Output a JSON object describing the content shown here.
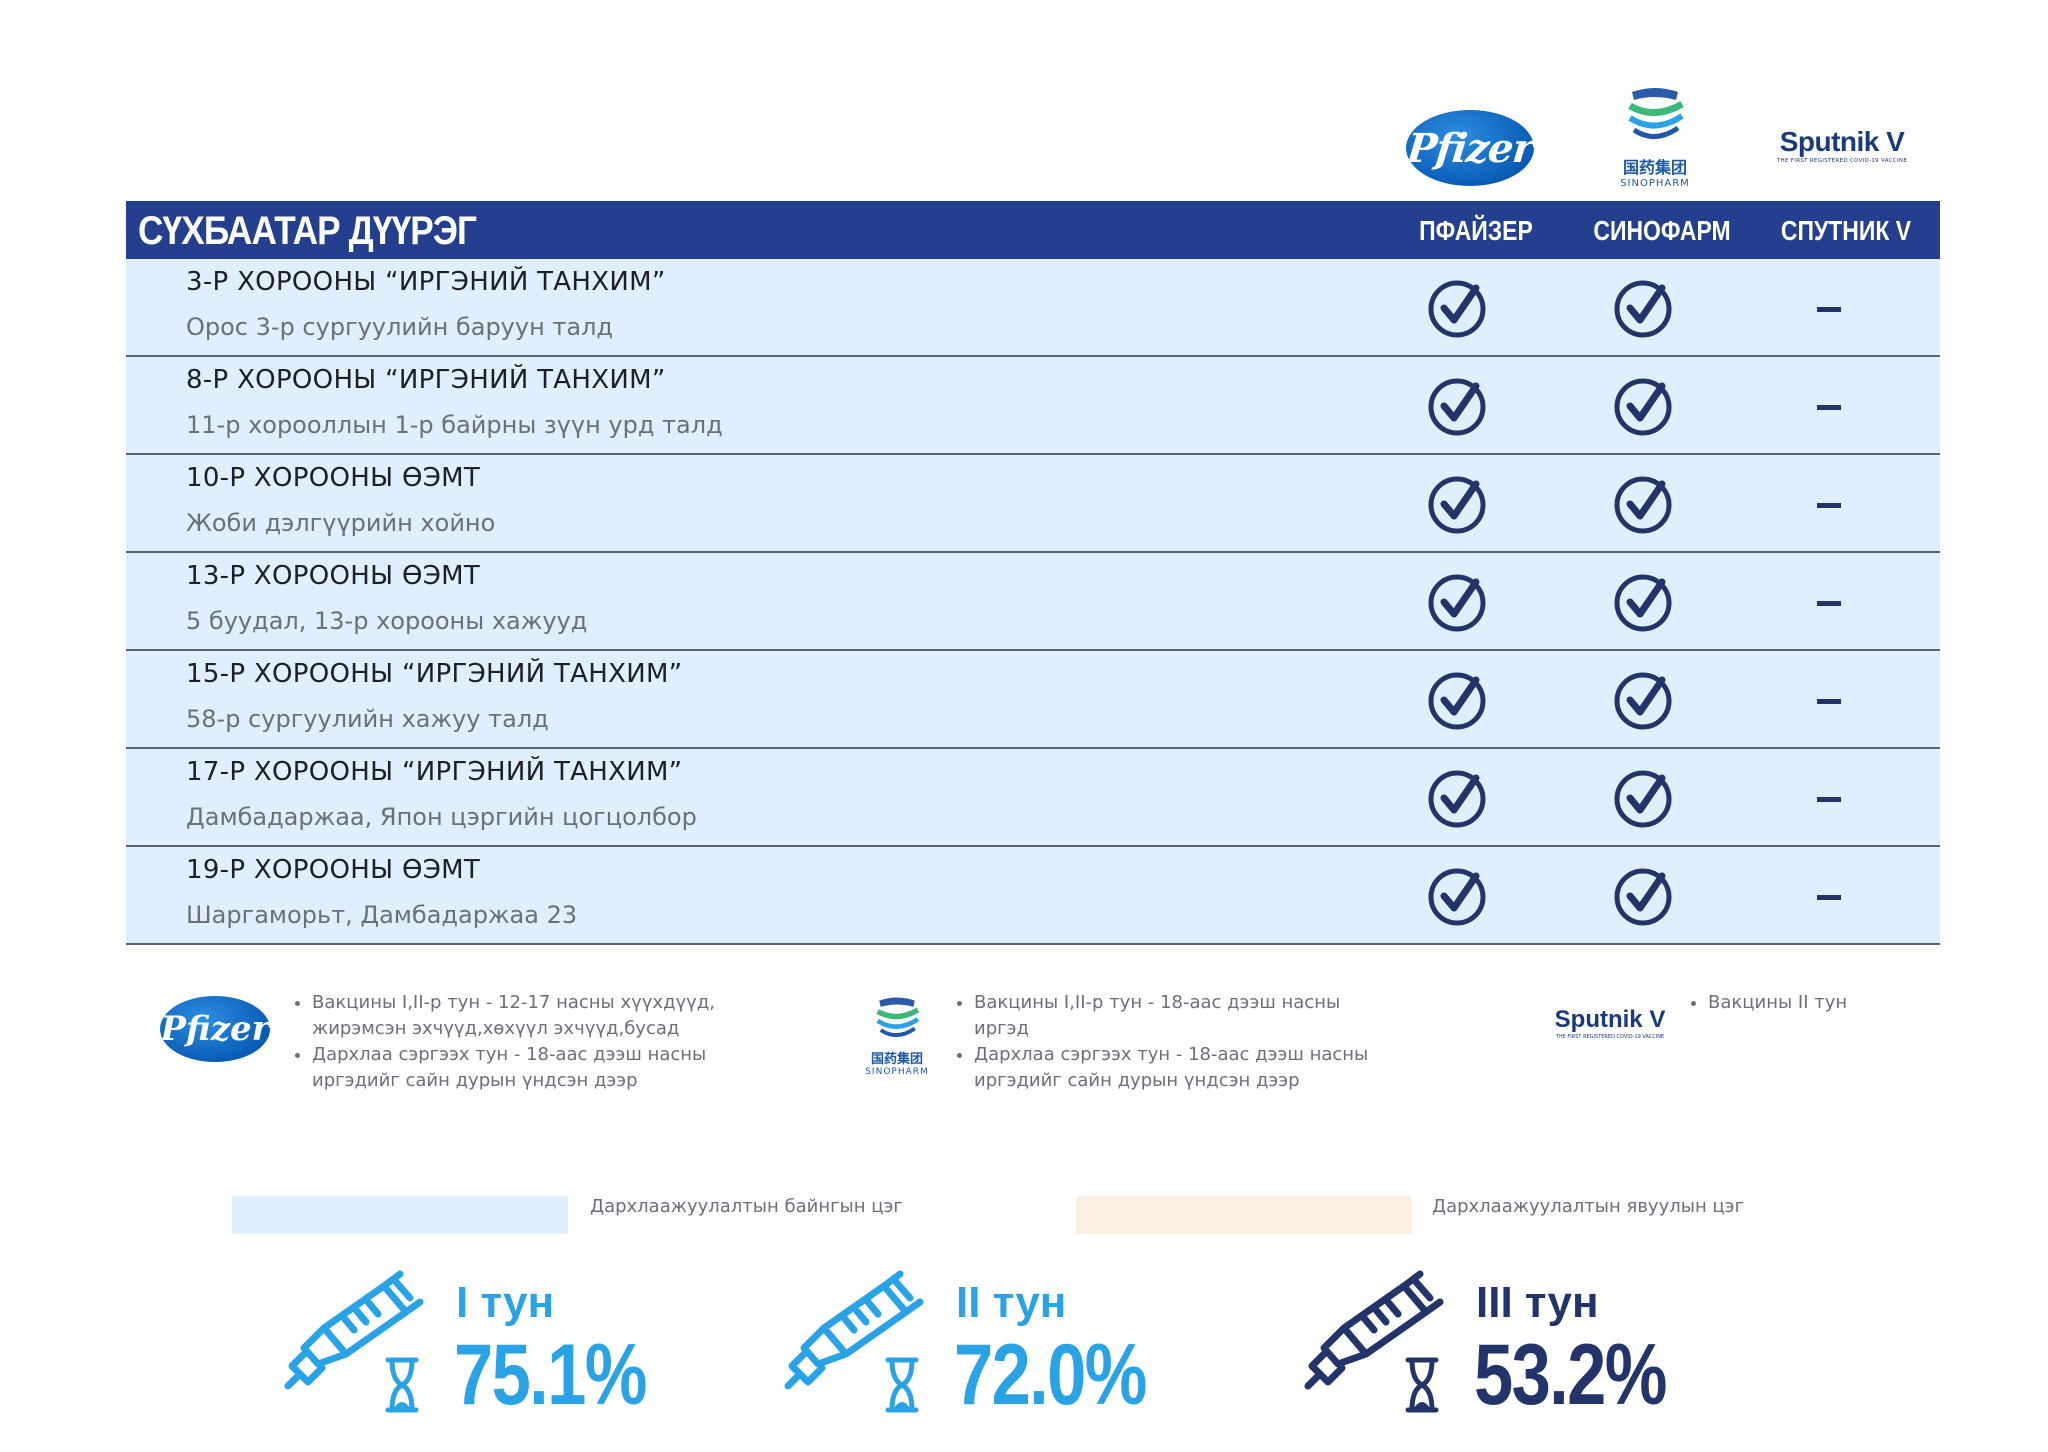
{
  "logos": {
    "pfizer": "Pfizer",
    "sinopharm_cn": "国药集团",
    "sinopharm_en": "SINOPHARM",
    "sputnik": "Sputnik V",
    "sputnik_tagline": "THE FIRST REGISTERED COVID-19 VACCINE"
  },
  "table": {
    "district": "СҮХБААТАР ДҮҮРЭГ",
    "columns": [
      "ПФАЙЗЕР",
      "СИНОФАРМ",
      "СПУТНИК V"
    ],
    "rows": [
      {
        "title": "3-Р ХОРООНЫ “ИРГЭНИЙ ТАНХИМ”",
        "address": "Орос 3-р сургуулийн баруун талд",
        "pfizer": true,
        "sinopharm": true,
        "sputnik": false
      },
      {
        "title": "8-Р ХОРООНЫ “ИРГЭНИЙ ТАНХИМ”",
        "address": "11-р хорооллын 1-р байрны зүүн урд талд",
        "pfizer": true,
        "sinopharm": true,
        "sputnik": false
      },
      {
        "title": "10-Р ХОРООНЫ ӨЭМТ",
        "address": "Жоби дэлгүүрийн хойно",
        "pfizer": true,
        "sinopharm": true,
        "sputnik": false
      },
      {
        "title": "13-Р ХОРООНЫ ӨЭМТ",
        "address": "5 буудал, 13-р хорооны хажууд",
        "pfizer": true,
        "sinopharm": true,
        "sputnik": false
      },
      {
        "title": "15-Р ХОРООНЫ “ИРГЭНИЙ ТАНХИМ”",
        "address": "58-р сургуулийн хажуу талд",
        "pfizer": true,
        "sinopharm": true,
        "sputnik": false
      },
      {
        "title": "17-Р ХОРООНЫ “ИРГЭНИЙ ТАНХИМ”",
        "address": "Дамбадаржаа, Япон цэргийн цогцолбор",
        "pfizer": true,
        "sinopharm": true,
        "sputnik": false
      },
      {
        "title": "19-Р ХОРООНЫ ӨЭМТ",
        "address": "Шаргаморьт, Дамбадаржаа 23",
        "pfizer": true,
        "sinopharm": true,
        "sputnik": false
      }
    ]
  },
  "footnotes": {
    "pfizer": [
      "Вакцины I,II-р тун - 12-17 насны хүүхдүүд, жирэмсэн эхчүүд,хөхүүл эхчүүд,бусад",
      "Дархлаа сэргээх тун - 18-аас дээш насны иргэдийг сайн дурын үндсэн дээр"
    ],
    "sinopharm": [
      "Вакцины I,II-р тун - 18-аас дээш насны иргэд",
      "Дархлаа сэргээх тун - 18-аас дээш насны иргэдийг сайн дурын үндсэн дээр"
    ],
    "sputnik": [
      "Вакцины II тун"
    ]
  },
  "legend": {
    "fixed": "Дархлаажуулалтын байнгын цэг",
    "mobile": "Дархлаажуулалтын явуулын цэг",
    "fixed_color": "#dff0fc",
    "mobile_color": "#fdf0e2"
  },
  "doses": [
    {
      "label": "I тун",
      "percent": "75.1%",
      "color": "#2aa3e6"
    },
    {
      "label": "II тун",
      "percent": "72.0%",
      "color": "#2aa3e6"
    },
    {
      "label": "III тун",
      "percent": "53.2%",
      "color": "#23346a"
    }
  ],
  "colors": {
    "header": "#243f8e",
    "check": "#23346a",
    "row_bg": "#dff0fc"
  }
}
